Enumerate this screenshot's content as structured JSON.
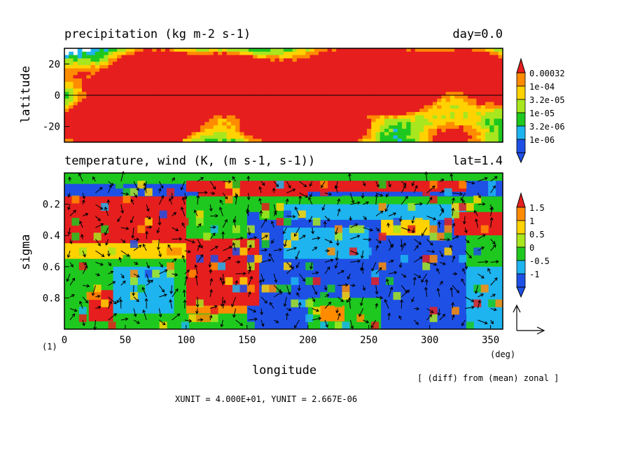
{
  "colors": {
    "scale": [
      "#1e50e6",
      "#1eb4f0",
      "#1ec81e",
      "#a8e61e",
      "#ffd200",
      "#ff8c00",
      "#e61e1e"
    ],
    "axis": "#000000",
    "background": "#ffffff"
  },
  "chart_data": [
    {
      "type": "heatmap",
      "title": "precipitation (kg m-2 s-1)",
      "right_title": "day=0.0",
      "ylabel": "latitude",
      "xlim": [
        0,
        360
      ],
      "ylim": [
        -30,
        30
      ],
      "yticks": [
        20,
        0,
        -20
      ],
      "ytick_labels": [
        "20",
        "0",
        "-20"
      ],
      "colorbar": {
        "levels": [
          "0.00032",
          "1e-04",
          "3.2e-05",
          "1e-05",
          "3.2e-06",
          "1e-06"
        ],
        "log_scale": true
      }
    },
    {
      "type": "heatmap",
      "title": "temperature, wind (K, (m s-1, s-1))",
      "right_title": "lat=1.4",
      "xlabel": "longitude",
      "ylabel": "sigma",
      "x_unit_label": "(deg)",
      "xlim": [
        0,
        360
      ],
      "ylim": [
        1.0,
        0.0
      ],
      "xticks": [
        0,
        50,
        100,
        150,
        200,
        250,
        300,
        350
      ],
      "xtick_labels": [
        "0",
        "50",
        "100",
        "150",
        "200",
        "250",
        "300",
        "350"
      ],
      "yticks": [
        0.2,
        0.4,
        0.6,
        0.8
      ],
      "ytick_labels": [
        "0.2",
        "0.4",
        "0.6",
        "0.8"
      ],
      "colorbar": {
        "levels": [
          "1.5",
          "1",
          "0.5",
          "0",
          "-0.5",
          "-1"
        ]
      },
      "vectors": "wind (m s-1, s-1)"
    }
  ],
  "annotations": {
    "frame_number": "(1)",
    "diff_note": "[ (diff) from (mean) zonal ]",
    "unit_note": "XUNIT = 4.000E+01, YUNIT = 2.667E-06"
  }
}
